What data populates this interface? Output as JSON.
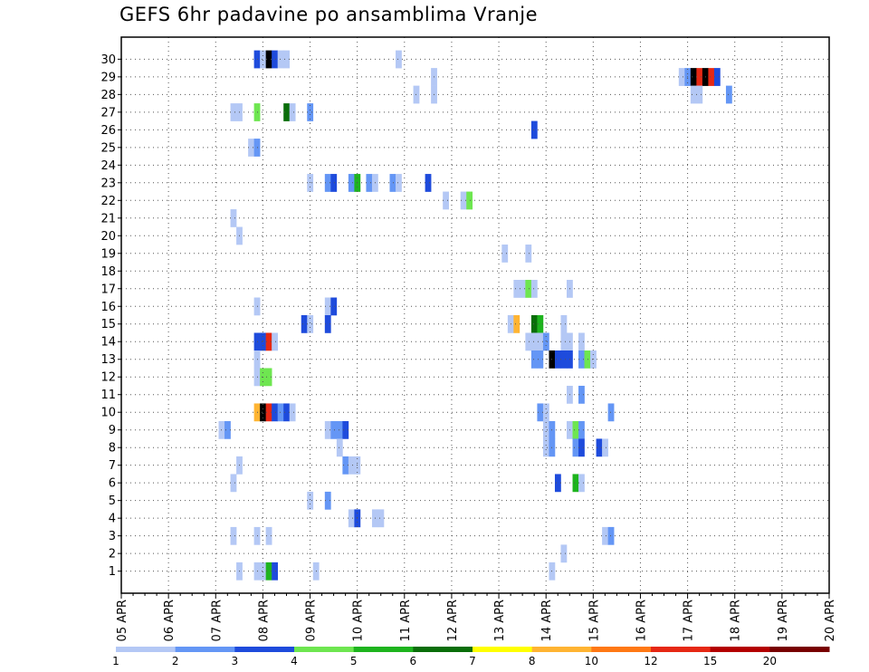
{
  "title": "GEFS 6hr padavine po ansamblima Vranje",
  "chart_data": {
    "type": "heatmap",
    "title": "GEFS 6hr padavine po ansamblima Vranje",
    "xlabel": "",
    "ylabel": "",
    "x_tick_labels": [
      "05 APR",
      "06 APR",
      "07 APR",
      "08 APR",
      "09 APR",
      "10 APR",
      "11 APR",
      "12 APR",
      "13 APR",
      "14 APR",
      "15 APR",
      "16 APR",
      "17 APR",
      "18 APR",
      "19 APR",
      "20 APR"
    ],
    "y_tick_labels": [
      "1",
      "2",
      "3",
      "4",
      "5",
      "6",
      "7",
      "8",
      "9",
      "10",
      "11",
      "12",
      "13",
      "14",
      "15",
      "16",
      "17",
      "18",
      "19",
      "20",
      "21",
      "22",
      "23",
      "24",
      "25",
      "26",
      "27",
      "28",
      "29",
      "30"
    ],
    "xlim": [
      0,
      60
    ],
    "ylim": [
      0,
      30
    ],
    "x_unit": "6-hour steps from 05 APR 00Z",
    "grid": true,
    "colorbar": {
      "levels": [
        1,
        2,
        3,
        4,
        5,
        6,
        7,
        8,
        10,
        12,
        15,
        20
      ],
      "colors": [
        "#b4c8f5",
        "#6496f5",
        "#1e4bdc",
        "#6ee650",
        "#1eb41e",
        "#0a6e0a",
        "#ffff00",
        "#ffb432",
        "#ff7814",
        "#e62814",
        "#b40000",
        "#780000"
      ],
      "labels": [
        "1",
        "2",
        "3",
        "4",
        "5",
        "6",
        "7",
        "8",
        "10",
        "12",
        "15",
        "20"
      ]
    },
    "cells": [
      [
        11.5,
        30,
        3
      ],
      [
        12,
        30,
        1
      ],
      [
        12.5,
        30,
        15
      ],
      [
        13,
        30,
        3
      ],
      [
        13.5,
        30,
        1
      ],
      [
        14,
        30,
        1
      ],
      [
        23.5,
        30,
        1
      ],
      [
        26.5,
        29,
        1
      ],
      [
        47.5,
        29,
        1
      ],
      [
        48,
        29,
        2
      ],
      [
        48.5,
        29,
        15
      ],
      [
        49,
        29,
        10
      ],
      [
        49.5,
        29,
        20
      ],
      [
        50,
        29,
        10
      ],
      [
        50.5,
        29,
        3
      ],
      [
        25,
        28,
        1
      ],
      [
        26.5,
        28,
        1
      ],
      [
        48.5,
        28,
        1
      ],
      [
        49,
        28,
        1
      ],
      [
        51.5,
        28,
        2
      ],
      [
        9.5,
        27,
        1
      ],
      [
        10,
        27,
        1
      ],
      [
        11.5,
        27,
        4
      ],
      [
        14,
        27,
        6
      ],
      [
        14.5,
        27,
        1
      ],
      [
        16,
        27,
        2
      ],
      [
        35,
        26,
        3
      ],
      [
        11,
        25,
        1
      ],
      [
        11.5,
        25,
        2
      ],
      [
        16,
        23,
        1
      ],
      [
        17.5,
        23,
        2
      ],
      [
        18,
        23,
        3
      ],
      [
        19.5,
        23,
        2
      ],
      [
        20,
        23,
        5
      ],
      [
        21,
        23,
        2
      ],
      [
        21.5,
        23,
        1
      ],
      [
        23,
        23,
        2
      ],
      [
        23.5,
        23,
        1
      ],
      [
        26,
        23,
        3
      ],
      [
        27.5,
        22,
        1
      ],
      [
        29,
        22,
        1
      ],
      [
        29.5,
        22,
        4
      ],
      [
        9.5,
        21,
        1
      ],
      [
        10,
        20,
        1
      ],
      [
        32.5,
        19,
        1
      ],
      [
        34.5,
        19,
        1
      ],
      [
        33.5,
        17,
        1
      ],
      [
        34,
        17,
        1
      ],
      [
        34.5,
        17,
        4
      ],
      [
        35,
        17,
        1
      ],
      [
        38,
        17,
        1
      ],
      [
        11.5,
        16,
        1
      ],
      [
        17.5,
        16,
        1
      ],
      [
        18,
        16,
        3
      ],
      [
        15.5,
        15,
        3
      ],
      [
        16,
        15,
        1
      ],
      [
        17.5,
        15,
        3
      ],
      [
        33,
        15,
        1
      ],
      [
        33.5,
        15,
        8
      ],
      [
        35,
        15,
        6
      ],
      [
        35.5,
        15,
        5
      ],
      [
        37.5,
        15,
        1
      ],
      [
        11.5,
        14,
        3
      ],
      [
        12,
        14,
        3
      ],
      [
        12.5,
        14,
        10
      ],
      [
        13,
        14,
        1
      ],
      [
        34.5,
        14,
        1
      ],
      [
        35,
        14,
        1
      ],
      [
        35.5,
        14,
        1
      ],
      [
        36,
        14,
        2
      ],
      [
        37.5,
        14,
        1
      ],
      [
        38,
        14,
        1
      ],
      [
        39,
        14,
        1
      ],
      [
        11.5,
        13,
        1
      ],
      [
        35,
        13,
        2
      ],
      [
        35.5,
        13,
        2
      ],
      [
        36.5,
        13,
        15
      ],
      [
        37,
        13,
        3
      ],
      [
        37.5,
        13,
        3
      ],
      [
        38,
        13,
        3
      ],
      [
        39,
        13,
        2
      ],
      [
        39.5,
        13,
        4
      ],
      [
        40,
        13,
        1
      ],
      [
        11.5,
        12,
        1
      ],
      [
        12,
        12,
        4
      ],
      [
        12.5,
        12,
        4
      ],
      [
        38,
        11,
        1
      ],
      [
        39,
        11,
        2
      ],
      [
        11.5,
        10,
        8
      ],
      [
        12,
        10,
        15
      ],
      [
        12.5,
        10,
        10
      ],
      [
        13,
        10,
        3
      ],
      [
        13.5,
        10,
        2
      ],
      [
        14,
        10,
        3
      ],
      [
        14.5,
        10,
        1
      ],
      [
        35.5,
        10,
        2
      ],
      [
        36,
        10,
        1
      ],
      [
        41.5,
        10,
        2
      ],
      [
        8.5,
        9,
        1
      ],
      [
        9,
        9,
        2
      ],
      [
        17.5,
        9,
        1
      ],
      [
        18,
        9,
        2
      ],
      [
        18.5,
        9,
        2
      ],
      [
        19,
        9,
        3
      ],
      [
        36,
        9,
        1
      ],
      [
        36.5,
        9,
        2
      ],
      [
        38,
        9,
        1
      ],
      [
        38.5,
        9,
        4
      ],
      [
        39,
        9,
        2
      ],
      [
        18.5,
        8,
        1
      ],
      [
        36,
        8,
        1
      ],
      [
        36.5,
        8,
        2
      ],
      [
        38.5,
        8,
        2
      ],
      [
        39,
        8,
        3
      ],
      [
        40.5,
        8,
        3
      ],
      [
        41,
        8,
        1
      ],
      [
        10,
        7,
        1
      ],
      [
        19,
        7,
        2
      ],
      [
        19.5,
        7,
        1
      ],
      [
        20,
        7,
        1
      ],
      [
        9.5,
        6,
        1
      ],
      [
        37,
        6,
        3
      ],
      [
        38.5,
        6,
        5
      ],
      [
        39,
        6,
        1
      ],
      [
        16,
        5,
        1
      ],
      [
        17.5,
        5,
        2
      ],
      [
        19.5,
        4,
        1
      ],
      [
        20,
        4,
        3
      ],
      [
        21.5,
        4,
        1
      ],
      [
        22,
        4,
        1
      ],
      [
        9.5,
        3,
        1
      ],
      [
        11.5,
        3,
        1
      ],
      [
        12.5,
        3,
        1
      ],
      [
        41,
        3,
        1
      ],
      [
        41.5,
        3,
        2
      ],
      [
        37.5,
        2,
        1
      ],
      [
        10,
        1,
        1
      ],
      [
        11.5,
        1,
        1
      ],
      [
        12,
        1,
        1
      ],
      [
        12.5,
        1,
        5
      ],
      [
        13,
        1,
        3
      ],
      [
        16.5,
        1,
        1
      ],
      [
        36.5,
        1,
        1
      ]
    ]
  }
}
